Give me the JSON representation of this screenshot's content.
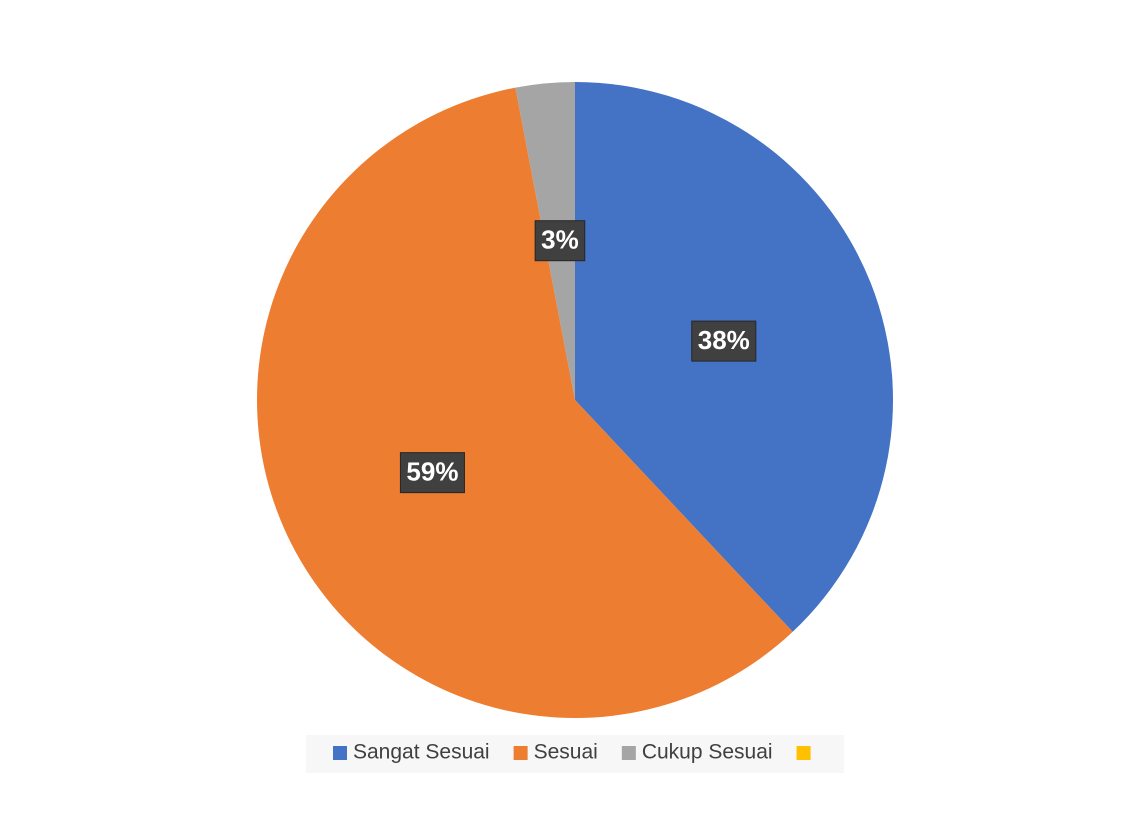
{
  "chart_data": {
    "type": "pie",
    "categories": [
      "Sangat Sesuai",
      "Sesuai",
      "Cukup Sesuai",
      null
    ],
    "values": [
      38,
      59,
      3,
      0
    ],
    "value_labels": [
      "38%",
      "59%",
      "3%",
      null
    ],
    "colors": [
      "#4472c4",
      "#ed7d31",
      "#a5a5a5",
      "#ffc000"
    ],
    "legend": "bottom"
  }
}
